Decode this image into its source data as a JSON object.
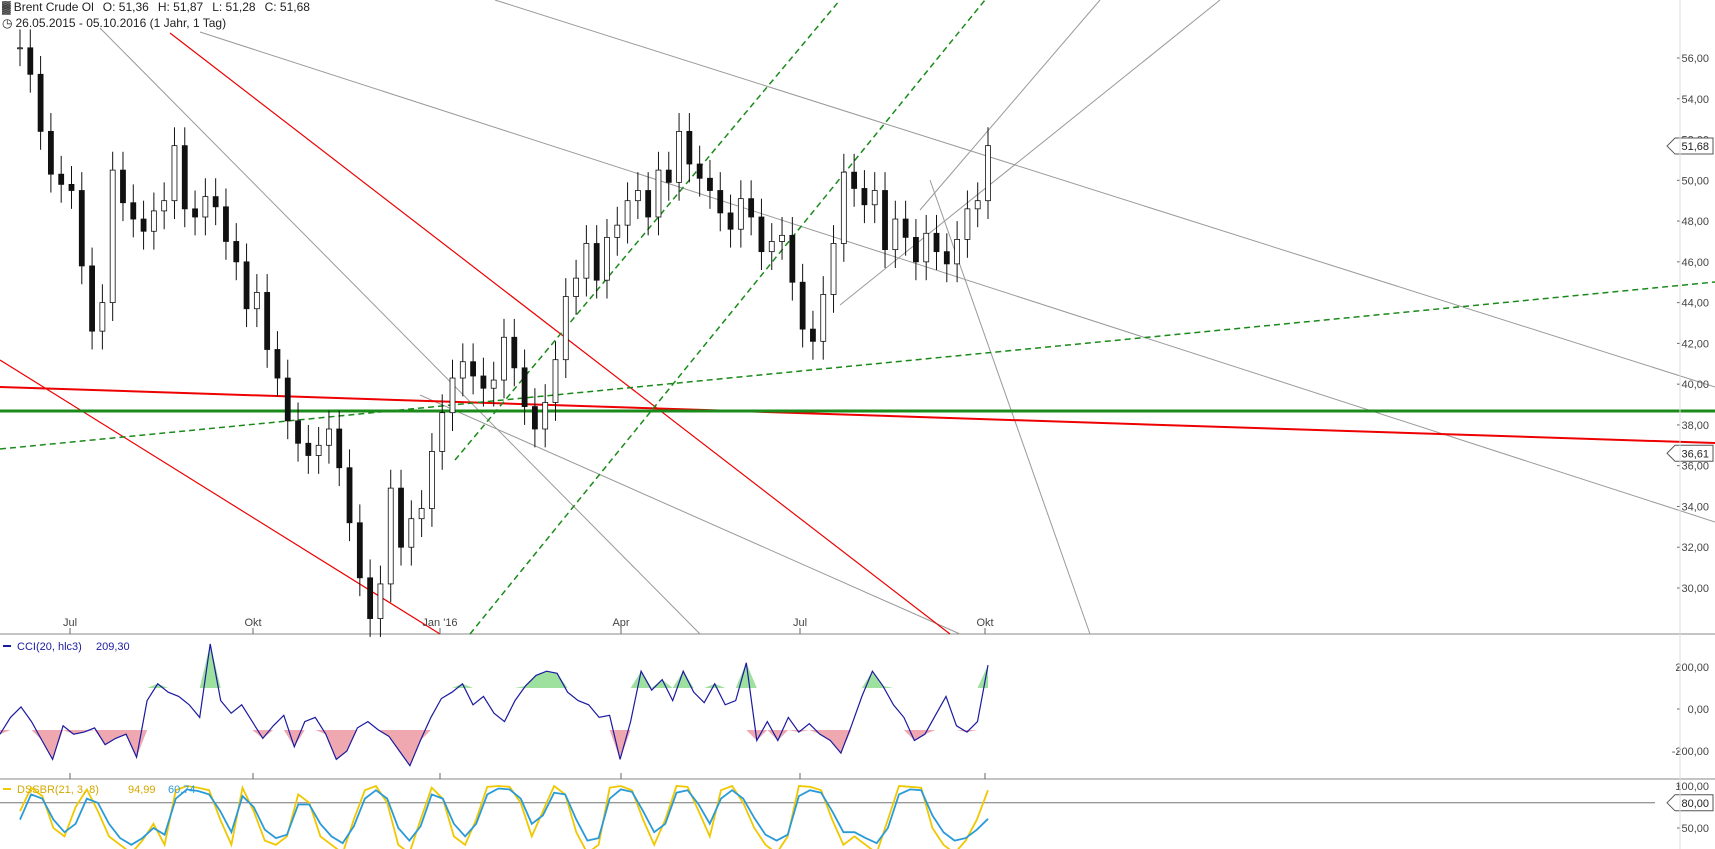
{
  "header": {
    "instrument": "Brent Crude Ol",
    "open": "O: 51,36",
    "high": "H: 51,87",
    "low": "L: 51,28",
    "close": "C: 51,68",
    "period": "26.05.2015 - 05.10.2016 (1 Jahr, 1 Tag)"
  },
  "chart_data": [
    {
      "type": "candlestick",
      "title": "Brent Crude Ol",
      "ylim": [
        28.0,
        57.0
      ],
      "yticks": [
        "56,00",
        "54,00",
        "52,00",
        "50,00",
        "48,00",
        "46,00",
        "44,00",
        "42,00",
        "40,00",
        "38,00",
        "36,00",
        "34,00",
        "32,00",
        "30,00"
      ],
      "xticks": [
        "Jul",
        "Okt",
        "Jan '16",
        "Apr",
        "Jul",
        "Okt"
      ],
      "last_price_label": "51,68",
      "level_label": "36,61",
      "level": 36.61,
      "series": [
        {
          "values": [
            56.5,
            55.2,
            52.4,
            50.3,
            49.8,
            49.5,
            45.8,
            42.6,
            44.0,
            50.5,
            48.9,
            48.1,
            47.5,
            48.5,
            49.0,
            51.7,
            48.6,
            48.2,
            49.2,
            48.7,
            47.0,
            46.0,
            43.7,
            44.5,
            41.7,
            40.3,
            38.2,
            37.1,
            36.5,
            37.0,
            37.8,
            35.9,
            33.2,
            30.5,
            28.5,
            30.2,
            34.9,
            32.0,
            33.4,
            33.9,
            36.7,
            38.6,
            40.3,
            41.1,
            40.4,
            39.8,
            40.2,
            42.3,
            40.8,
            38.9,
            37.8,
            39.1,
            41.2,
            44.3,
            45.2,
            46.9,
            45.1,
            47.2,
            47.8,
            49.0,
            49.5,
            48.2,
            50.5,
            49.9,
            52.4,
            50.8,
            50.1,
            49.5,
            48.4,
            47.6,
            49.1,
            48.2,
            46.5,
            47.0,
            47.3,
            45.0,
            42.7,
            42.1,
            44.4,
            46.9,
            50.4,
            49.6,
            48.8,
            49.5,
            46.6,
            48.1,
            47.2,
            46.0,
            47.4,
            46.5,
            45.9,
            47.1,
            48.6,
            49.0,
            51.7
          ]
        }
      ]
    },
    {
      "type": "line",
      "title": "CCI(20, hlc3)",
      "value_label": "209,30",
      "ylim": [
        -300,
        320
      ],
      "yticks": [
        "200,00",
        "0,00",
        "-200,00"
      ],
      "series": [
        {
          "name": "CCI(20, hlc3)",
          "values": [
            -120,
            -40,
            10,
            -60,
            -150,
            -240,
            -80,
            -120,
            -110,
            -90,
            -170,
            -140,
            -120,
            -230,
            40,
            120,
            80,
            60,
            20,
            -40,
            310,
            40,
            -20,
            20,
            -60,
            -140,
            -80,
            -30,
            -180,
            -60,
            -40,
            -120,
            -240,
            -200,
            -90,
            -60,
            -100,
            -130,
            -200,
            -270,
            -150,
            -40,
            50,
            80,
            120,
            20,
            60,
            -20,
            -60,
            40,
            110,
            160,
            180,
            170,
            80,
            40,
            20,
            -40,
            -30,
            -240,
            -60,
            180,
            90,
            140,
            40,
            180,
            80,
            30,
            120,
            20,
            40,
            220,
            -150,
            -60,
            -150,
            -40,
            -110,
            -70,
            -120,
            -150,
            -210,
            -80,
            60,
            180,
            110,
            20,
            -40,
            -150,
            -120,
            -30,
            60,
            -80,
            -110,
            -60,
            209
          ]
        }
      ]
    },
    {
      "type": "line",
      "title": "DSSBR(21, 3, 8)",
      "ylim": [
        28,
        108
      ],
      "yticks": [
        "100,00",
        "80,00",
        "50,00"
      ],
      "level_label": "80,00",
      "series": [
        {
          "name": "94,99",
          "color": "#f0c800",
          "values": [
            70,
            98,
            88,
            50,
            40,
            75,
            96,
            70,
            40,
            30,
            20,
            35,
            55,
            30,
            95,
            100,
            98,
            95,
            60,
            30,
            98,
            70,
            35,
            30,
            40,
            90,
            80,
            40,
            30,
            20,
            60,
            95,
            100,
            80,
            30,
            20,
            60,
            98,
            85,
            40,
            30,
            60,
            99,
            100,
            99,
            80,
            40,
            70,
            100,
            90,
            45,
            20,
            30,
            98,
            100,
            95,
            60,
            30,
            60,
            100,
            99,
            70,
            40,
            95,
            100,
            80,
            50,
            30,
            20,
            40,
            100,
            99,
            95,
            60,
            30,
            40,
            30,
            20,
            60,
            100,
            99,
            98,
            50,
            30,
            20,
            35,
            60,
            95
          ]
        },
        {
          "name": "60,74",
          "color": "#2a9ad8",
          "values": [
            60,
            90,
            85,
            60,
            45,
            55,
            85,
            80,
            55,
            38,
            30,
            38,
            50,
            42,
            85,
            96,
            94,
            90,
            70,
            45,
            88,
            75,
            48,
            38,
            42,
            78,
            78,
            55,
            40,
            32,
            52,
            85,
            95,
            85,
            50,
            35,
            52,
            90,
            85,
            55,
            40,
            55,
            90,
            97,
            96,
            85,
            55,
            65,
            92,
            90,
            60,
            35,
            38,
            85,
            96,
            93,
            70,
            45,
            55,
            92,
            95,
            78,
            55,
            85,
            95,
            85,
            62,
            42,
            35,
            42,
            88,
            95,
            92,
            70,
            45,
            45,
            38,
            32,
            50,
            90,
            96,
            95,
            65,
            45,
            35,
            38,
            48,
            61
          ]
        }
      ]
    }
  ]
}
